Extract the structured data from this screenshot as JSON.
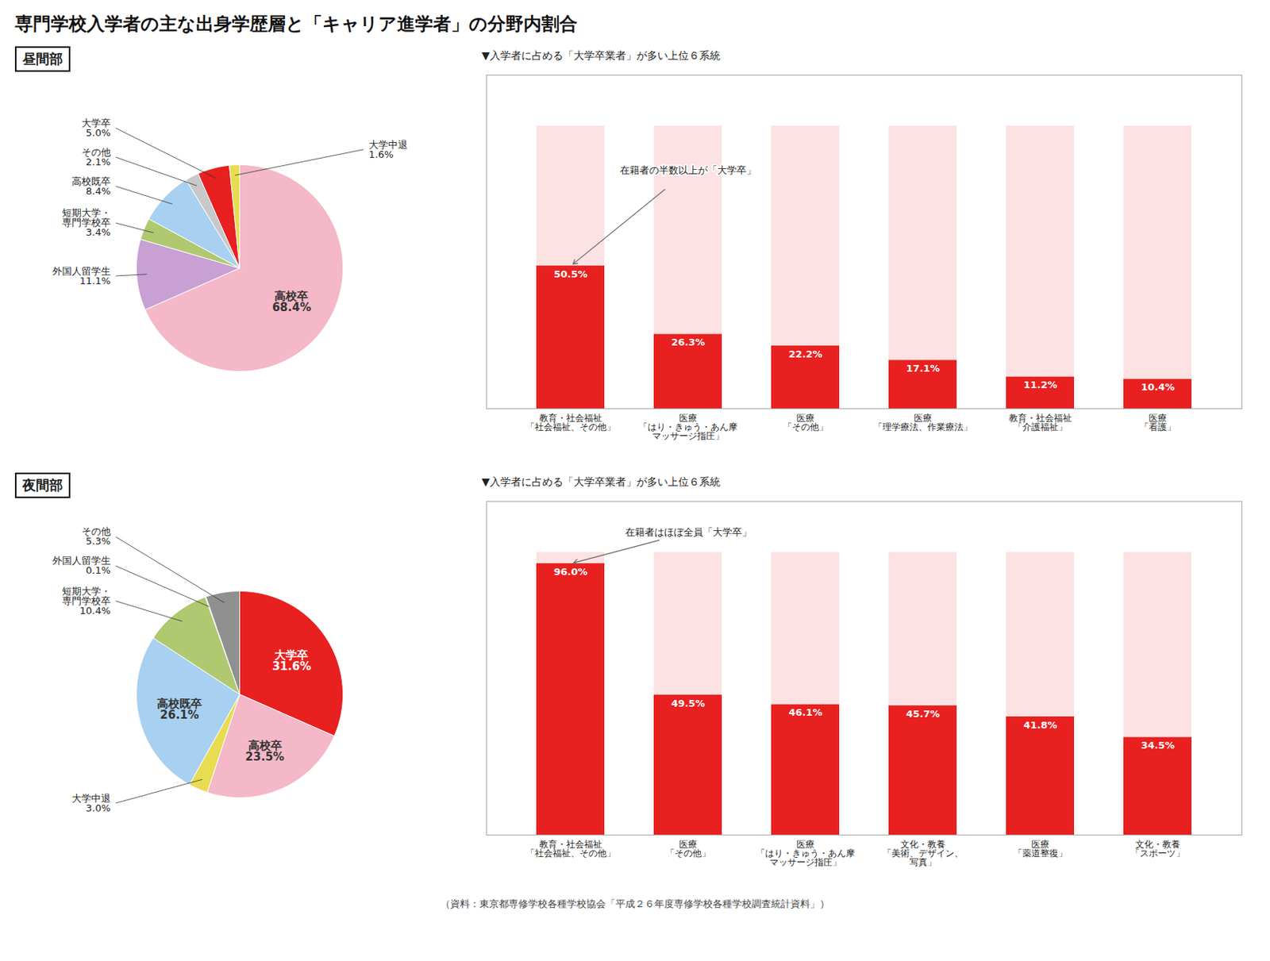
{
  "title": "専門学校入学者の主な出身学歴層と「キャリア進学者」の分野内割合",
  "caption": "（資料：東京都専修学校各種学校協会「平成２６年度専修学校各種学校調査統計資料」）",
  "chart_data": [
    {
      "type": "pie",
      "title": "昼間部",
      "categories": [
        "高校卒",
        "外国人留学生",
        "短期大学・\n専門学校卒",
        "高校既卒",
        "その他",
        "大学卒",
        "大学中退"
      ],
      "values": [
        68.4,
        11.1,
        3.4,
        8.4,
        2.1,
        5.0,
        1.6
      ],
      "value_labels": [
        "68.4%",
        "11.1%",
        "3.4%",
        "8.4%",
        "2.1%",
        "5.0%",
        "1.6%"
      ],
      "colors": [
        "#f4b8c8",
        "#c8a0d4",
        "#b0c870",
        "#a8d0f0",
        "#c8c8c8",
        "#e82020",
        "#e8dc50"
      ],
      "data_labels": true
    },
    {
      "type": "bar",
      "subtitle": "▼入学者に占める「大学卒業者」が多い上位６系統",
      "annotation": "在籍者の半数以上が「大学卒」",
      "categories": [
        "教育・社会福祉\n「社会福祉、その他」",
        "医療\n「はり・きゅう・あん摩\nマッサージ指圧」",
        "医療\n「その他」",
        "医療\n「理学療法、作業療法」",
        "教育・社会福祉\n「介護福祉」",
        "医療\n「看護」"
      ],
      "values": [
        50.5,
        26.3,
        22.2,
        17.1,
        11.2,
        10.4
      ],
      "value_labels": [
        "50.5%",
        "26.3%",
        "22.2%",
        "17.1%",
        "11.2%",
        "10.4%"
      ],
      "max_val": 100,
      "color": "#e82020",
      "ylim": [
        0,
        118
      ],
      "tick_labels": "x",
      "data_labels": true
    },
    {
      "type": "pie",
      "title": "夜間部",
      "categories": [
        "大学卒",
        "高校卒",
        "大学中退",
        "高校既卒",
        "短期大学・\n専門学校卒",
        "外国人留学生",
        "その他"
      ],
      "values": [
        31.6,
        23.5,
        3.0,
        26.1,
        10.4,
        0.1,
        5.3
      ],
      "value_labels": [
        "31.6%",
        "23.5%",
        "3.0%",
        "26.1%",
        "10.4%",
        "0.1%",
        "5.3%"
      ],
      "colors": [
        "#e82020",
        "#f4b8c8",
        "#e8dc50",
        "#a8d0f0",
        "#b0c870",
        "#c8c8c8",
        "#909090"
      ],
      "data_labels": true
    },
    {
      "type": "bar",
      "subtitle": "▼入学者に占める「大学卒業者」が多い上位６系統",
      "annotation": "在籍者はほぼ全員「大学卒」",
      "categories": [
        "教育・社会福祉\n「社会福祉、その他」",
        "医療\n「その他」",
        "医療\n「はり・きゅう・あん摩\nマッサージ指圧」",
        "文化・教養\n「美術、デザイン、\n写真」",
        "医療\n「薬道整復」",
        "文化・教養\n「スポーツ」"
      ],
      "values": [
        96.0,
        49.5,
        46.1,
        45.7,
        41.8,
        34.5
      ],
      "value_labels": [
        "96.0%",
        "49.5%",
        "46.1%",
        "45.7%",
        "41.8%",
        "34.5%"
      ],
      "max_val": 100,
      "color": "#e82020",
      "ylim": [
        0,
        118
      ],
      "tick_labels": "x",
      "data_labels": true
    }
  ]
}
